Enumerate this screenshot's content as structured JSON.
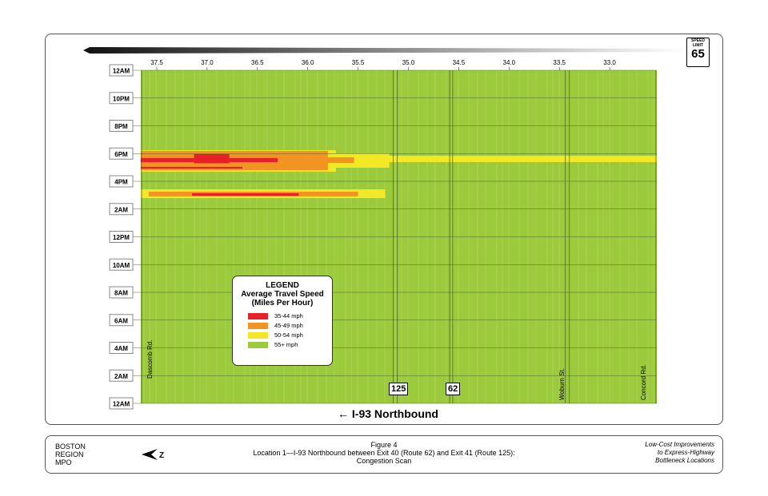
{
  "speed_limit": {
    "top": "SPEED",
    "mid": "LIMIT",
    "value": "65"
  },
  "direction_label": "I-93 Northbound",
  "legend": {
    "title": "LEGEND",
    "subtitle1": "Average Travel Speed",
    "subtitle2": "(Miles Per Hour)",
    "items": [
      {
        "label": "35-44 mph",
        "color": "#e8202a"
      },
      {
        "label": "45-49 mph",
        "color": "#f39321"
      },
      {
        "label": "50-54 mph",
        "color": "#f2e825"
      },
      {
        "label": "55+ mph",
        "color": "#9bca3c"
      }
    ]
  },
  "roads": [
    {
      "label": "Dascomb Rd."
    },
    {
      "label": "Woburn St."
    },
    {
      "label": "Concord Rd."
    }
  ],
  "route_shields": [
    {
      "label": "125"
    },
    {
      "label": "62"
    }
  ],
  "footer": {
    "org": [
      "BOSTON",
      "REGION",
      "MPO"
    ],
    "figure": "Figure 4",
    "caption1": "Location 1—I-93 Northbound between Exit 40 (Route 62) and Exit 41 (Route 125):",
    "caption2": "Congestion Scan",
    "report": [
      "Low-Cost Improvements",
      "to Express-Highway",
      "Bottleneck Locations"
    ]
  },
  "chart_data": {
    "type": "heatmap",
    "x_unit": "mile marker",
    "x_range": [
      37.66,
      32.53
    ],
    "x_ticks": [
      "37.5",
      "37.0",
      "36.5",
      "36.0",
      "35.5",
      "35.0",
      "34.5",
      "34.0",
      "33.5",
      "33.0"
    ],
    "y_ticks": [
      "12AM",
      "10PM",
      "8PM",
      "6PM",
      "4PM",
      "2AM",
      "12PM",
      "10AM",
      "8AM",
      "6AM",
      "4AM",
      "2AM",
      "12AM"
    ],
    "y_range_hours": [
      0,
      24
    ],
    "background_level": "55+ mph",
    "cells": [
      {
        "mile_from": 37.66,
        "mile_to": 35.72,
        "hour_from": 16.69,
        "hour_to": 18.24,
        "level": "50-54 mph"
      },
      {
        "mile_from": 37.66,
        "mile_to": 35.19,
        "hour_from": 16.98,
        "hour_to": 18.01,
        "level": "50-54 mph"
      },
      {
        "mile_from": 37.66,
        "mile_to": 32.53,
        "hour_from": 17.38,
        "hour_to": 17.84,
        "level": "50-54 mph"
      },
      {
        "mile_from": 37.66,
        "mile_to": 35.8,
        "hour_from": 16.81,
        "hour_to": 18.19,
        "level": "45-49 mph"
      },
      {
        "mile_from": 37.66,
        "mile_to": 35.54,
        "hour_from": 17.32,
        "hour_to": 17.73,
        "level": "45-49 mph"
      },
      {
        "mile_from": 37.66,
        "mile_to": 36.3,
        "hour_from": 17.38,
        "hour_to": 17.67,
        "level": "35-44 mph"
      },
      {
        "mile_from": 37.13,
        "mile_to": 36.78,
        "hour_from": 17.3,
        "hour_to": 17.96,
        "level": "35-44 mph"
      },
      {
        "mile_from": 37.66,
        "mile_to": 36.65,
        "hour_from": 16.92,
        "hour_to": 17.04,
        "level": "35-44 mph"
      },
      {
        "mile_from": 37.66,
        "mile_to": 35.23,
        "hour_from": 14.79,
        "hour_to": 15.42,
        "level": "50-54 mph"
      },
      {
        "mile_from": 37.58,
        "mile_to": 35.5,
        "hour_from": 14.91,
        "hour_to": 15.25,
        "level": "45-49 mph"
      },
      {
        "mile_from": 37.15,
        "mile_to": 36.09,
        "hour_from": 14.96,
        "hour_to": 15.14,
        "level": "35-44 mph"
      }
    ],
    "reference_lines_miles": [
      35.15,
      35.11,
      34.59,
      34.56,
      33.44,
      33.4
    ]
  }
}
